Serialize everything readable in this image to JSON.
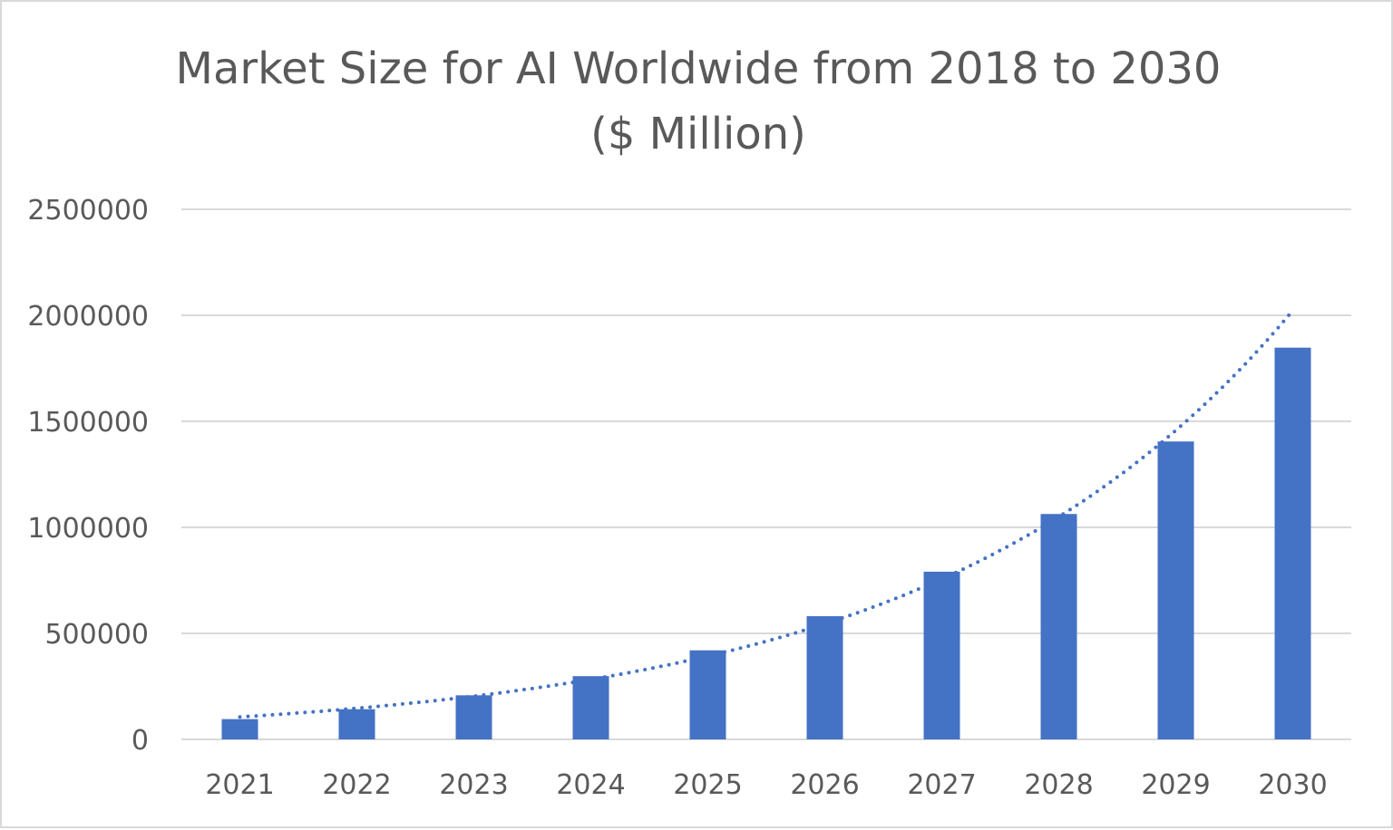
{
  "chart_data": {
    "type": "bar",
    "title": "Market Size for AI Worldwide from 2018 to 2030",
    "subtitle": "($ Million)",
    "xlabel": "",
    "ylabel": "",
    "categories": [
      "2021",
      "2022",
      "2023",
      "2024",
      "2025",
      "2026",
      "2027",
      "2028",
      "2029",
      "2030"
    ],
    "values": [
      95600,
      142300,
      207900,
      298250,
      420000,
      581000,
      791000,
      1063000,
      1405000,
      1847500
    ],
    "ylim": [
      0,
      2500000
    ],
    "yticks": [
      "0",
      "500000",
      "1000000",
      "1500000",
      "2000000",
      "2500000"
    ],
    "grid": true,
    "legend": "none",
    "trendline": {
      "type": "exponential",
      "style": "dotted"
    },
    "colors": {
      "bar": "#4472C4",
      "trendline": "#4472C4",
      "grid": "#d9d9d9",
      "text": "#595959"
    }
  }
}
